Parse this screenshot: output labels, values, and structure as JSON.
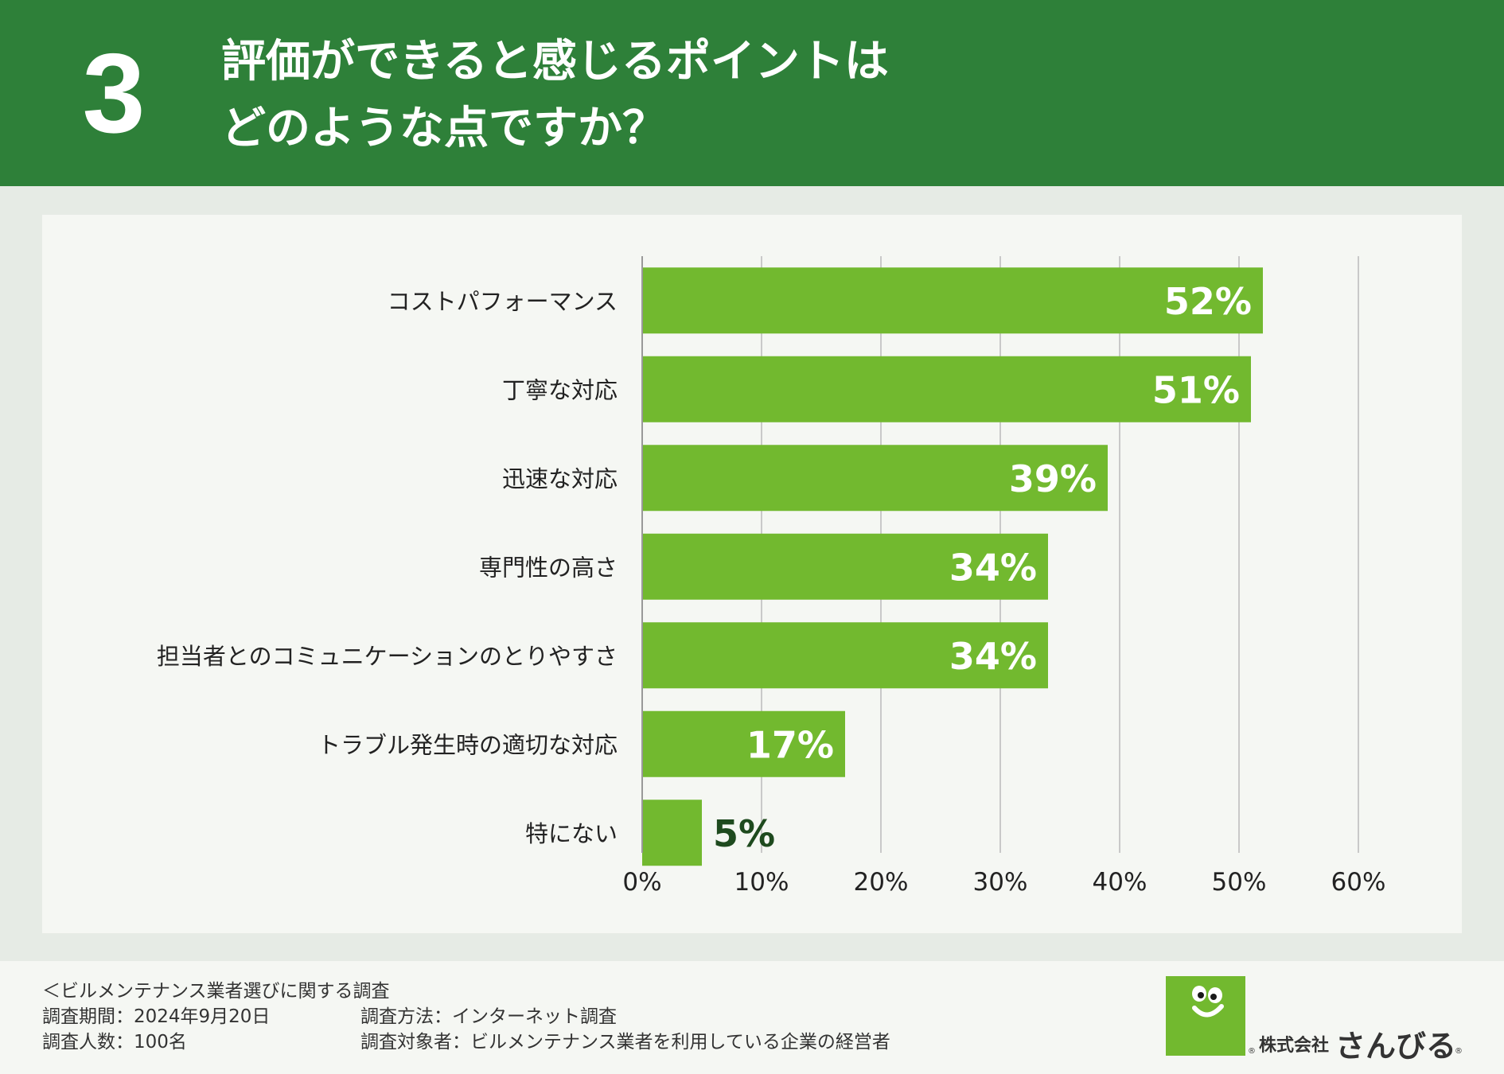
{
  "header": {
    "number": "3",
    "title_line1": "評価ができると感じるポイントは",
    "title_line2": "どのような点ですか？"
  },
  "colors": {
    "header_bg": "#2e8039",
    "bar": "#72b92f",
    "label_inside": "#ffffff",
    "label_outside": "#1e4a1e",
    "grid": "#c9c9c9"
  },
  "chart_data": {
    "type": "bar",
    "orientation": "horizontal",
    "categories": [
      "コストパフォーマンス",
      "丁寧な対応",
      "迅速な対応",
      "専門性の高さ",
      "担当者とのコミュニケーションのとりやすさ",
      "トラブル発生時の適切な対応",
      "特にない"
    ],
    "values": [
      52,
      51,
      39,
      34,
      34,
      17,
      5
    ],
    "value_labels": [
      "52%",
      "51%",
      "39%",
      "34%",
      "34%",
      "17%",
      "5%"
    ],
    "xlim": [
      0,
      60
    ],
    "x_ticks": [
      0,
      10,
      20,
      30,
      40,
      50,
      60
    ],
    "x_tick_labels": [
      "0%",
      "10%",
      "20%",
      "30%",
      "40%",
      "50%",
      "60%"
    ],
    "grid": true,
    "title": "",
    "xlabel": "",
    "ylabel": ""
  },
  "footer": {
    "survey_title": "＜ビルメンテナンス業者選びに関する調査",
    "period": "調査期間：2024年9月20日",
    "method": "調査方法：インターネット調査",
    "respondents": "調査人数：100名",
    "target": "調査対象者：ビルメンテナンス業者を利用している企業の経営者"
  },
  "logo": {
    "company_prefix": "株式会社",
    "name": "さんびる",
    "reg_mark": "®"
  }
}
